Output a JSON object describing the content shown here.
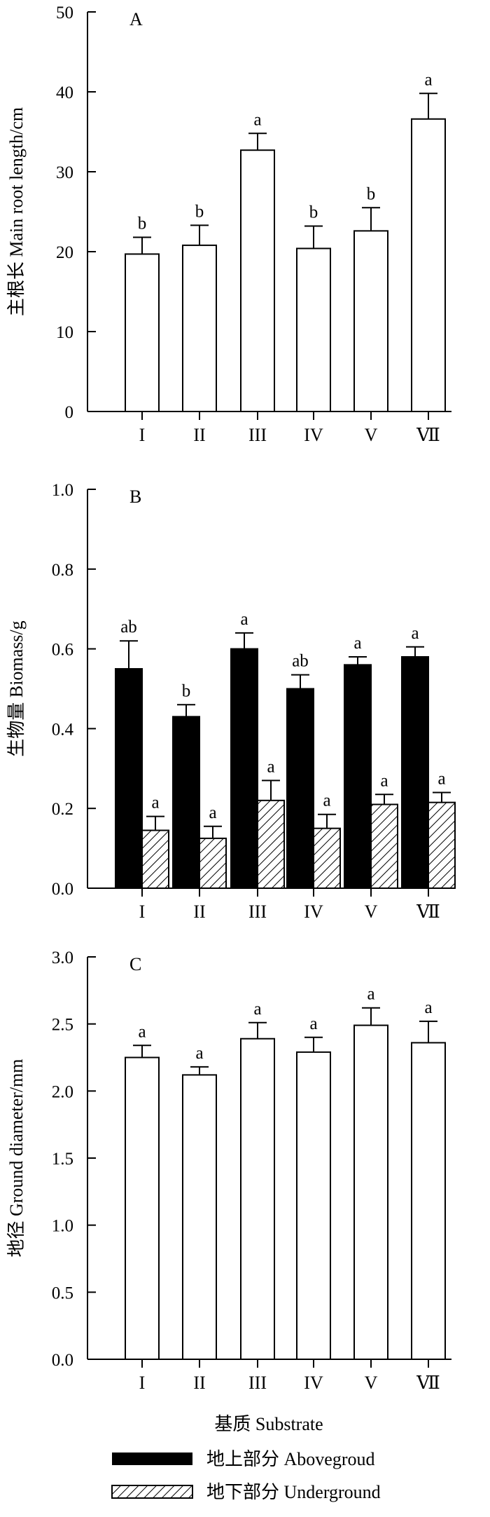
{
  "chart_data": [
    {
      "type": "bar",
      "panel_label": "A",
      "ylabel": "主根长 Main root length/cm",
      "ylim": [
        0,
        50
      ],
      "yticks": [
        "0",
        "10",
        "20",
        "30",
        "40",
        "50"
      ],
      "categories": [
        "I",
        "II",
        "III",
        "IV",
        "V",
        "Ⅶ"
      ],
      "series": [
        {
          "values": [
            19.7,
            20.8,
            32.7,
            20.4,
            22.6,
            36.6
          ],
          "errors": [
            2.1,
            2.5,
            2.1,
            2.8,
            2.9,
            3.2
          ],
          "labels": [
            "b",
            "b",
            "a",
            "b",
            "b",
            "a"
          ]
        }
      ]
    },
    {
      "type": "bar",
      "panel_label": "B",
      "ylabel": "生物量 Biomass/g",
      "ylim": [
        0,
        1.0
      ],
      "yticks": [
        "0.0",
        "0.2",
        "0.4",
        "0.6",
        "0.8",
        "1.0"
      ],
      "categories": [
        "I",
        "II",
        "III",
        "IV",
        "V",
        "Ⅶ"
      ],
      "series": [
        {
          "name": "地上部分 Abovegroud",
          "values": [
            0.55,
            0.43,
            0.6,
            0.5,
            0.56,
            0.58
          ],
          "errors": [
            0.07,
            0.03,
            0.04,
            0.035,
            0.02,
            0.025
          ],
          "labels": [
            "ab",
            "b",
            "a",
            "ab",
            "a",
            "a"
          ]
        },
        {
          "name": "地下部分 Underground",
          "values": [
            0.145,
            0.125,
            0.22,
            0.15,
            0.21,
            0.215
          ],
          "errors": [
            0.035,
            0.03,
            0.05,
            0.035,
            0.025,
            0.025
          ],
          "labels": [
            "a",
            "a",
            "a",
            "a",
            "a",
            "a"
          ]
        }
      ]
    },
    {
      "type": "bar",
      "panel_label": "C",
      "ylabel": "地径 Ground diameter/mm",
      "ylim": [
        0,
        3.0
      ],
      "yticks": [
        "0.0",
        "0.5",
        "1.0",
        "1.5",
        "2.0",
        "2.5",
        "3.0"
      ],
      "categories": [
        "I",
        "II",
        "III",
        "IV",
        "V",
        "Ⅶ"
      ],
      "series": [
        {
          "values": [
            2.25,
            2.12,
            2.39,
            2.29,
            2.49,
            2.36
          ],
          "errors": [
            0.09,
            0.06,
            0.12,
            0.11,
            0.13,
            0.16
          ],
          "labels": [
            "a",
            "a",
            "a",
            "a",
            "a",
            "a"
          ]
        }
      ]
    }
  ],
  "xlabel": "基质 Substrate",
  "legend": [
    {
      "label": "地上部分 Abovegroud",
      "style": "solid"
    },
    {
      "label": "地下部分 Underground",
      "style": "hatch"
    }
  ]
}
